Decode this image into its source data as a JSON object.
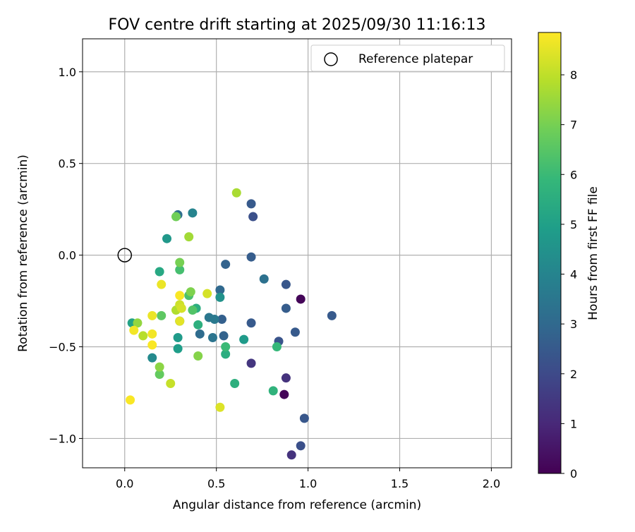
{
  "chart_data": {
    "type": "scatter",
    "title": "FOV centre drift starting at 2025/09/30 11:16:13",
    "xlabel": "Angular distance from reference (arcmin)",
    "ylabel": "Rotation from reference (arcmin)",
    "xlim": [
      -0.23,
      2.11
    ],
    "ylim": [
      -1.16,
      1.18
    ],
    "xticks": [
      0.0,
      0.5,
      1.0,
      1.5,
      2.0
    ],
    "yticks": [
      -1.0,
      -0.5,
      0.0,
      0.5,
      1.0
    ],
    "xtick_labels": [
      "0.0",
      "0.5",
      "1.0",
      "1.5",
      "2.0"
    ],
    "ytick_labels": [
      "−1.0",
      "−0.5",
      "0.0",
      "0.5",
      "1.0"
    ],
    "grid": true,
    "legend": {
      "position": "top-right",
      "label": "Reference platepar"
    },
    "reference_point": {
      "x": 0.0,
      "y": 0.0
    },
    "colorbar": {
      "label": "Hours from first FF file",
      "range": [
        0,
        8.85
      ],
      "ticks": [
        0,
        1,
        2,
        3,
        4,
        5,
        6,
        7,
        8
      ],
      "tick_labels": [
        "0",
        "1",
        "2",
        "3",
        "4",
        "5",
        "6",
        "7",
        "8"
      ],
      "colormap": "viridis",
      "colors": [
        "#440154",
        "#482878",
        "#3e4989",
        "#31688e",
        "#26828e",
        "#1f9e89",
        "#35b779",
        "#6ece58",
        "#b5de2b",
        "#fde725"
      ]
    },
    "points": [
      {
        "x": 0.87,
        "y": -0.76,
        "c": 0.1
      },
      {
        "x": 0.96,
        "y": -0.24,
        "c": 0.1
      },
      {
        "x": 0.91,
        "y": -1.09,
        "c": 1.3
      },
      {
        "x": 0.88,
        "y": -0.67,
        "c": 1.3
      },
      {
        "x": 0.69,
        "y": -0.59,
        "c": 1.4
      },
      {
        "x": 0.96,
        "y": -1.04,
        "c": 2.2
      },
      {
        "x": 0.98,
        "y": -0.89,
        "c": 2.4
      },
      {
        "x": 0.93,
        "y": -0.42,
        "c": 2.5
      },
      {
        "x": 0.84,
        "y": -0.47,
        "c": 2.3
      },
      {
        "x": 1.13,
        "y": -0.33,
        "c": 2.5
      },
      {
        "x": 0.88,
        "y": -0.16,
        "c": 2.4
      },
      {
        "x": 0.88,
        "y": -0.29,
        "c": 2.6
      },
      {
        "x": 0.7,
        "y": 0.21,
        "c": 2.2
      },
      {
        "x": 0.69,
        "y": 0.28,
        "c": 2.5
      },
      {
        "x": 0.69,
        "y": -0.01,
        "c": 2.6
      },
      {
        "x": 0.69,
        "y": -0.37,
        "c": 2.5
      },
      {
        "x": 0.55,
        "y": -0.05,
        "c": 2.8
      },
      {
        "x": 0.53,
        "y": -0.35,
        "c": 2.7
      },
      {
        "x": 0.54,
        "y": -0.44,
        "c": 2.8
      },
      {
        "x": 0.52,
        "y": -0.19,
        "c": 3.0
      },
      {
        "x": 0.41,
        "y": -0.43,
        "c": 3.1
      },
      {
        "x": 0.48,
        "y": -0.45,
        "c": 3.4
      },
      {
        "x": 0.46,
        "y": -0.34,
        "c": 3.5
      },
      {
        "x": 0.49,
        "y": -0.35,
        "c": 3.6
      },
      {
        "x": 0.29,
        "y": 0.22,
        "c": 3.2
      },
      {
        "x": 0.76,
        "y": -0.13,
        "c": 3.3
      },
      {
        "x": 0.37,
        "y": 0.23,
        "c": 4.0
      },
      {
        "x": 0.3,
        "y": -0.36,
        "c": 4.1
      },
      {
        "x": 0.15,
        "y": -0.56,
        "c": 4.2
      },
      {
        "x": 0.23,
        "y": 0.09,
        "c": 4.7
      },
      {
        "x": 0.52,
        "y": -0.23,
        "c": 4.5
      },
      {
        "x": 0.65,
        "y": -0.46,
        "c": 4.8
      },
      {
        "x": 0.29,
        "y": -0.45,
        "c": 4.8
      },
      {
        "x": 0.29,
        "y": -0.51,
        "c": 4.9
      },
      {
        "x": 0.04,
        "y": -0.37,
        "c": 5.1
      },
      {
        "x": 0.19,
        "y": -0.09,
        "c": 5.3
      },
      {
        "x": 0.39,
        "y": -0.29,
        "c": 5.5
      },
      {
        "x": 0.4,
        "y": -0.38,
        "c": 5.6
      },
      {
        "x": 0.55,
        "y": -0.54,
        "c": 5.5
      },
      {
        "x": 0.6,
        "y": -0.7,
        "c": 5.6
      },
      {
        "x": 0.81,
        "y": -0.74,
        "c": 5.7
      },
      {
        "x": 0.83,
        "y": -0.5,
        "c": 5.9
      },
      {
        "x": 0.55,
        "y": -0.5,
        "c": 6.0
      },
      {
        "x": 0.3,
        "y": -0.08,
        "c": 6.2
      },
      {
        "x": 0.35,
        "y": -0.22,
        "c": 6.3
      },
      {
        "x": 0.37,
        "y": -0.3,
        "c": 6.4
      },
      {
        "x": 0.2,
        "y": -0.33,
        "c": 6.6
      },
      {
        "x": 0.19,
        "y": -0.65,
        "c": 6.7
      },
      {
        "x": 0.28,
        "y": 0.21,
        "c": 6.9
      },
      {
        "x": 0.3,
        "y": -0.04,
        "c": 7.0
      },
      {
        "x": 0.36,
        "y": -0.2,
        "c": 7.1
      },
      {
        "x": 0.4,
        "y": -0.55,
        "c": 7.2
      },
      {
        "x": 0.19,
        "y": -0.61,
        "c": 7.3
      },
      {
        "x": 0.07,
        "y": -0.37,
        "c": 7.4
      },
      {
        "x": 0.35,
        "y": 0.1,
        "c": 7.6
      },
      {
        "x": 0.61,
        "y": 0.34,
        "c": 7.7
      },
      {
        "x": 0.28,
        "y": -0.3,
        "c": 7.8
      },
      {
        "x": 0.1,
        "y": -0.44,
        "c": 7.9
      },
      {
        "x": 0.25,
        "y": -0.7,
        "c": 8.1
      },
      {
        "x": 0.3,
        "y": -0.27,
        "c": 8.2
      },
      {
        "x": 0.31,
        "y": -0.29,
        "c": 8.3
      },
      {
        "x": 0.45,
        "y": -0.21,
        "c": 8.3
      },
      {
        "x": 0.52,
        "y": -0.83,
        "c": 8.4
      },
      {
        "x": 0.3,
        "y": -0.36,
        "c": 8.5
      },
      {
        "x": 0.2,
        "y": -0.16,
        "c": 8.6
      },
      {
        "x": 0.15,
        "y": -0.33,
        "c": 8.6
      },
      {
        "x": 0.15,
        "y": -0.43,
        "c": 8.7
      },
      {
        "x": 0.05,
        "y": -0.41,
        "c": 8.7
      },
      {
        "x": 0.15,
        "y": -0.49,
        "c": 8.8
      },
      {
        "x": 0.03,
        "y": -0.79,
        "c": 8.8
      },
      {
        "x": 0.3,
        "y": -0.22,
        "c": 8.8
      }
    ]
  }
}
